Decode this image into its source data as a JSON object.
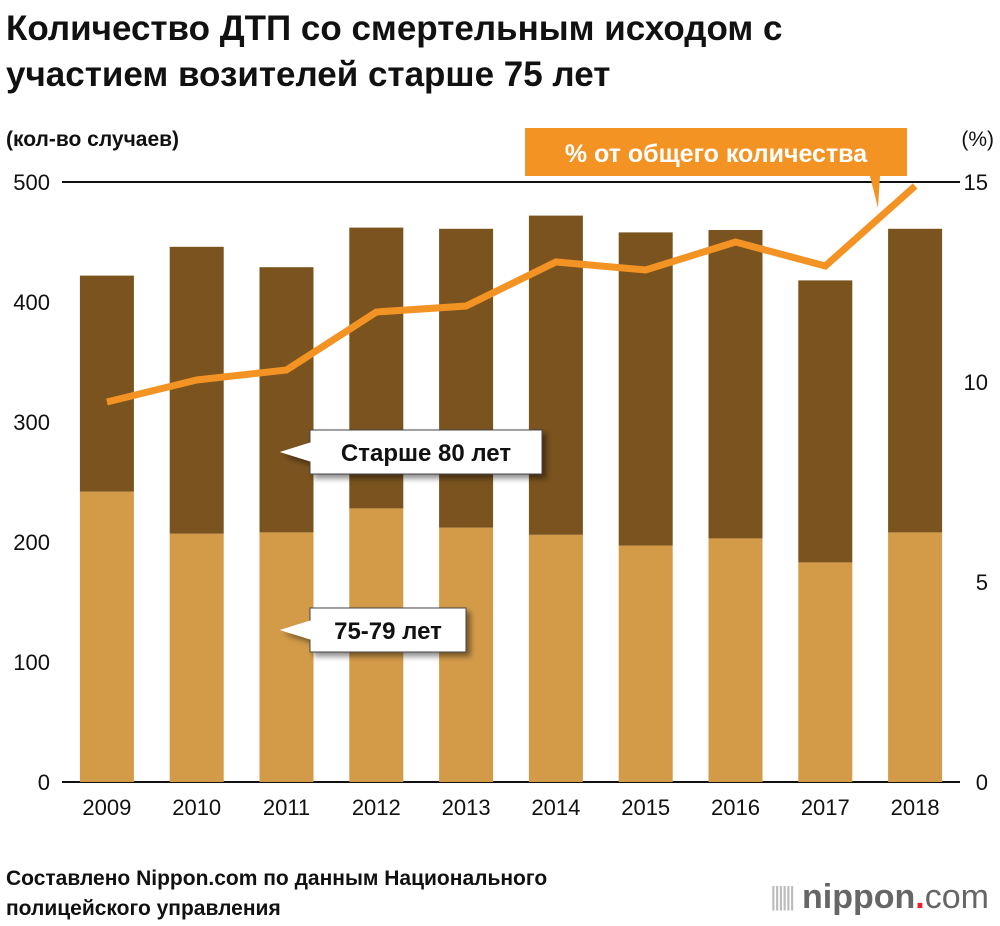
{
  "chart_data": {
    "type": "bar",
    "title": "Количество ДТП со смертельным исходом с участием возителей старше 75 лет",
    "title_lines": [
      "Количество ДТП со смертельным исходом с",
      "участием возителей старше 75 лет"
    ],
    "ylabel": "(кол-во случаев)",
    "y2label": "(%)",
    "ylim": [
      0,
      500
    ],
    "y2lim": [
      0,
      15
    ],
    "yticks": [
      0,
      100,
      200,
      300,
      400,
      500
    ],
    "y2ticks": [
      0,
      5,
      10,
      15
    ],
    "categories": [
      "2009",
      "2010",
      "2011",
      "2012",
      "2013",
      "2014",
      "2015",
      "2016",
      "2017",
      "2018"
    ],
    "series": [
      {
        "name": "75-79 лет",
        "type": "stacked-bar",
        "color": "#d39b48",
        "values": [
          242,
          207,
          208,
          228,
          212,
          206,
          197,
          203,
          183,
          208
        ]
      },
      {
        "name": "Старше 80 лет",
        "type": "stacked-bar",
        "color": "#7a531e",
        "values": [
          180,
          239,
          221,
          234,
          249,
          266,
          261,
          257,
          235,
          253
        ]
      },
      {
        "name": "% от общего количества",
        "type": "line",
        "axis": "right",
        "color": "#f39324",
        "values": [
          9.5,
          10.05,
          10.3,
          11.75,
          11.9,
          13.0,
          12.8,
          13.5,
          12.9,
          14.9
        ]
      }
    ],
    "grid": false,
    "source": [
      "Составлено Nippon.com по данным Национального",
      "полицейского управления"
    ]
  },
  "logo": {
    "text_bold": "nippon",
    "dot": ".",
    "text_light": "com"
  }
}
